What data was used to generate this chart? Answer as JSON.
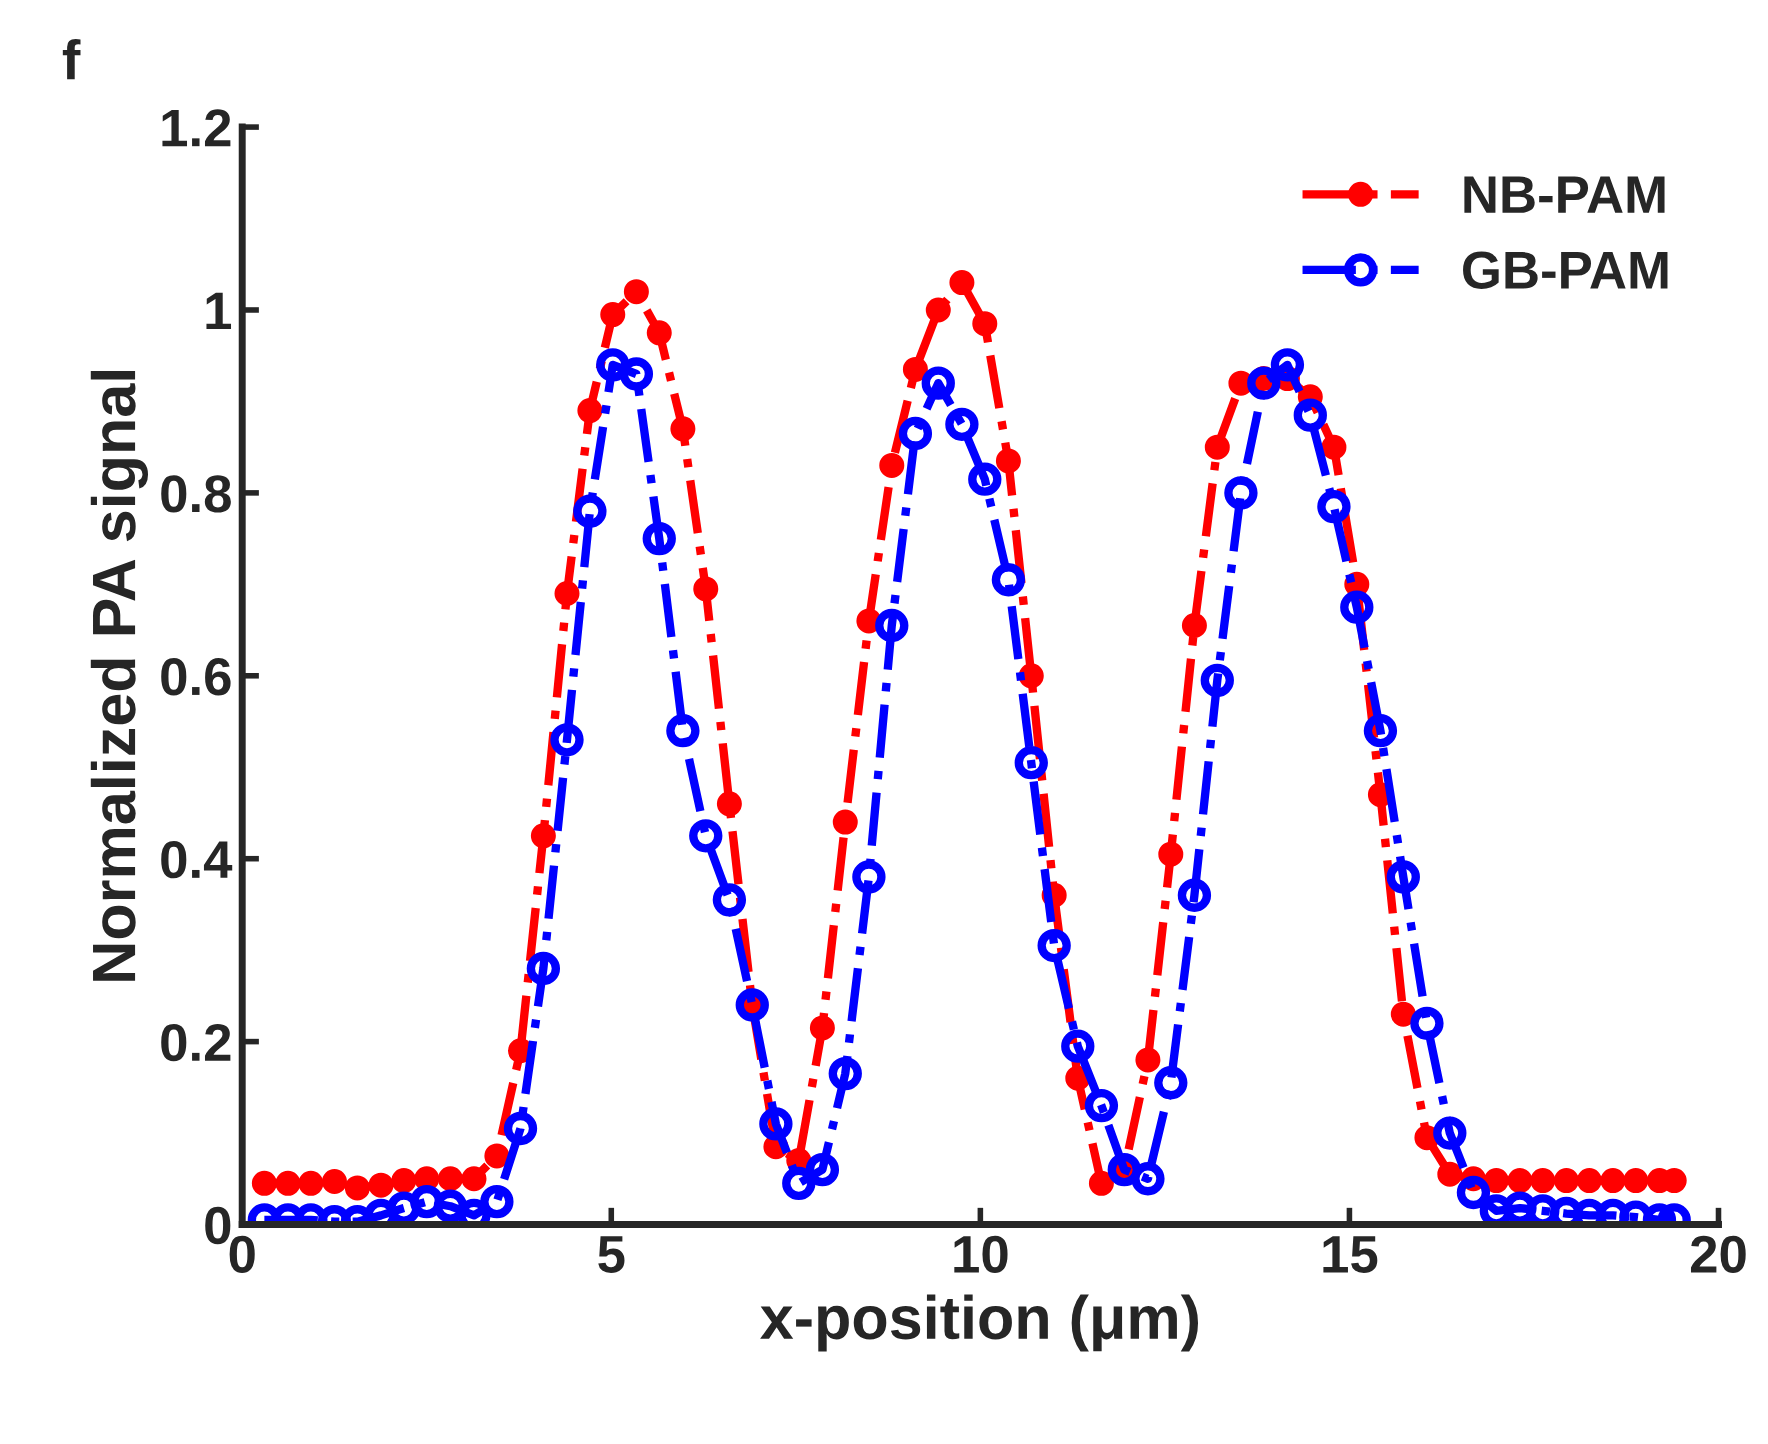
{
  "chart_data": {
    "type": "line",
    "title": "f",
    "xlabel": "x-position (μm)",
    "ylabel": "Normalized PA signal",
    "x": [
      0.3,
      0.62,
      0.93,
      1.25,
      1.56,
      1.88,
      2.19,
      2.5,
      2.82,
      3.14,
      3.45,
      3.77,
      4.08,
      4.4,
      4.71,
      5.02,
      5.34,
      5.65,
      5.97,
      6.28,
      6.6,
      6.91,
      7.23,
      7.54,
      7.86,
      8.17,
      8.49,
      8.8,
      9.12,
      9.43,
      9.75,
      10.06,
      10.38,
      10.69,
      11.0,
      11.32,
      11.64,
      11.95,
      12.27,
      12.58,
      12.9,
      13.21,
      13.53,
      13.84,
      14.16,
      14.47,
      14.79,
      15.1,
      15.42,
      15.73,
      16.05,
      16.36,
      16.68,
      16.99,
      17.31,
      17.62,
      17.94,
      18.25,
      18.57,
      18.88,
      19.2,
      19.4
    ],
    "series": [
      {
        "name": "NB-PAM",
        "color": "#ff0000",
        "values": [
          0.045,
          0.045,
          0.045,
          0.047,
          0.04,
          0.043,
          0.048,
          0.05,
          0.05,
          0.05,
          0.075,
          0.19,
          0.425,
          0.69,
          0.89,
          0.995,
          1.02,
          0.975,
          0.87,
          0.695,
          0.46,
          0.24,
          0.085,
          0.07,
          0.215,
          0.44,
          0.66,
          0.83,
          0.935,
          1.0,
          1.03,
          0.985,
          0.835,
          0.6,
          0.36,
          0.16,
          0.045,
          0.06,
          0.18,
          0.405,
          0.655,
          0.85,
          0.92,
          0.925,
          0.925,
          0.905,
          0.85,
          0.7,
          0.47,
          0.23,
          0.095,
          0.055,
          0.05,
          0.048,
          0.048,
          0.048,
          0.048,
          0.048,
          0.048,
          0.048,
          0.048,
          0.048
        ]
      },
      {
        "name": "GB-PAM",
        "color": "#0000ff",
        "values": [
          0.005,
          0.005,
          0.005,
          0.003,
          0.003,
          0.01,
          0.018,
          0.025,
          0.02,
          0.01,
          0.025,
          0.105,
          0.28,
          0.53,
          0.78,
          0.94,
          0.93,
          0.75,
          0.54,
          0.425,
          0.355,
          0.24,
          0.11,
          0.045,
          0.06,
          0.165,
          0.38,
          0.655,
          0.865,
          0.92,
          0.875,
          0.815,
          0.705,
          0.505,
          0.305,
          0.195,
          0.13,
          0.06,
          0.05,
          0.155,
          0.36,
          0.595,
          0.8,
          0.92,
          0.94,
          0.885,
          0.785,
          0.675,
          0.54,
          0.38,
          0.22,
          0.1,
          0.035,
          0.015,
          0.018,
          0.015,
          0.012,
          0.01,
          0.01,
          0.008,
          0.005,
          0.005
        ]
      }
    ],
    "xlim": [
      0,
      20
    ],
    "xticks": [
      0,
      5,
      10,
      15,
      20
    ],
    "ylim": [
      0,
      1.2
    ],
    "yticks": [
      0,
      0.2,
      0.4,
      0.6,
      0.8,
      1,
      1.2
    ],
    "grid": false,
    "legend": "top right",
    "marker": "circle",
    "line_style": "dashdot"
  }
}
